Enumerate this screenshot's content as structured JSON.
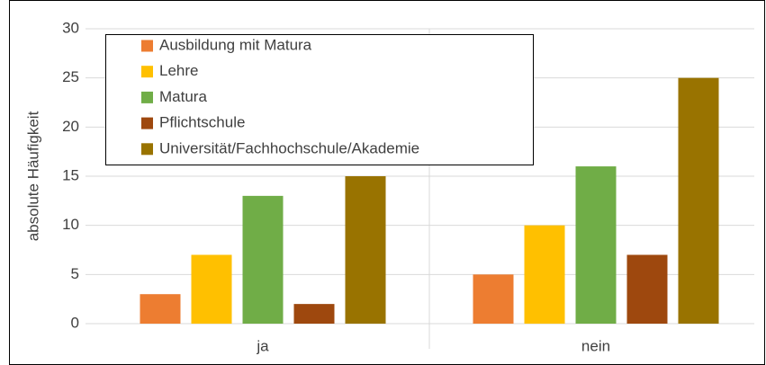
{
  "chart_data": {
    "type": "bar",
    "y_label": "absolute Häufigkeit",
    "categories": [
      "ja",
      "nein"
    ],
    "series": [
      {
        "name": "Ausbildung mit Matura",
        "color": "#ed7d31",
        "values": [
          3,
          5
        ]
      },
      {
        "name": "Lehre",
        "color": "#ffc000",
        "values": [
          7,
          10
        ]
      },
      {
        "name": "Matura",
        "color": "#70ad47",
        "values": [
          13,
          16
        ]
      },
      {
        "name": "Pflichtschule",
        "color": "#9e480e",
        "values": [
          2,
          7
        ]
      },
      {
        "name": "Universität/Fachhochschule/Akademie",
        "color": "#997300",
        "values": [
          15,
          25
        ]
      }
    ],
    "ylim": [
      0,
      30
    ],
    "yticks": [
      0,
      5,
      10,
      15,
      20,
      25,
      30
    ],
    "grid": true,
    "legend": "upper left"
  }
}
